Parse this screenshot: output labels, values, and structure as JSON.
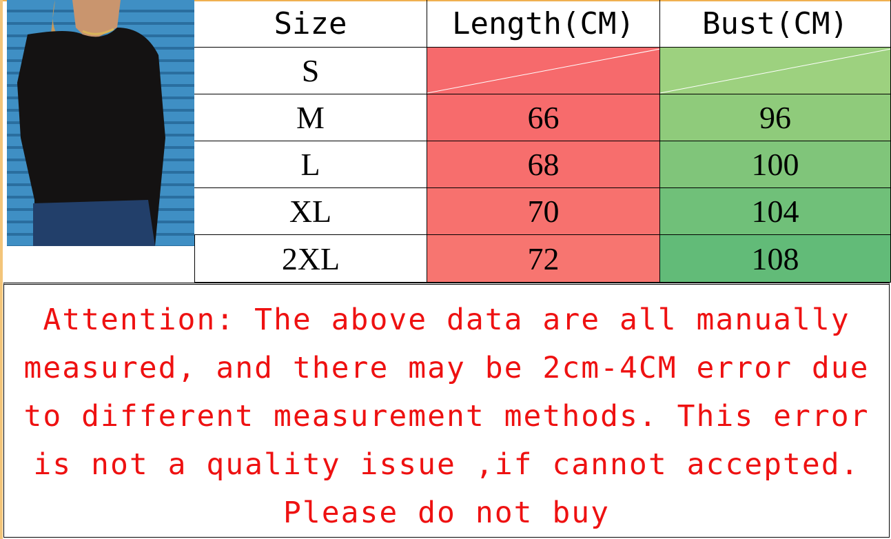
{
  "table": {
    "headers": [
      "Size",
      "Length(CM)",
      "Bust(CM)"
    ],
    "rows": [
      {
        "size": "S",
        "length": "",
        "bust": ""
      },
      {
        "size": "M",
        "length": "66",
        "bust": "96"
      },
      {
        "size": "L",
        "length": "68",
        "bust": "100"
      },
      {
        "size": "XL",
        "length": "70",
        "bust": "104"
      },
      {
        "size": "2XL",
        "length": "72",
        "bust": "108"
      }
    ]
  },
  "colors": {
    "length_column": "#f76b6b",
    "bust_column": "#8ccb78",
    "text_notice": "#ee1111"
  },
  "notice": {
    "lines": [
      "Attention: The above data are all manually",
      "measured, and there may be 2cm-4CM error due",
      "to different measurement methods. This error",
      "is not a quality issue ,if cannot accepted.",
      "Please do not buy"
    ]
  },
  "photo": {
    "subject": "model wearing black long-sleeve top"
  }
}
